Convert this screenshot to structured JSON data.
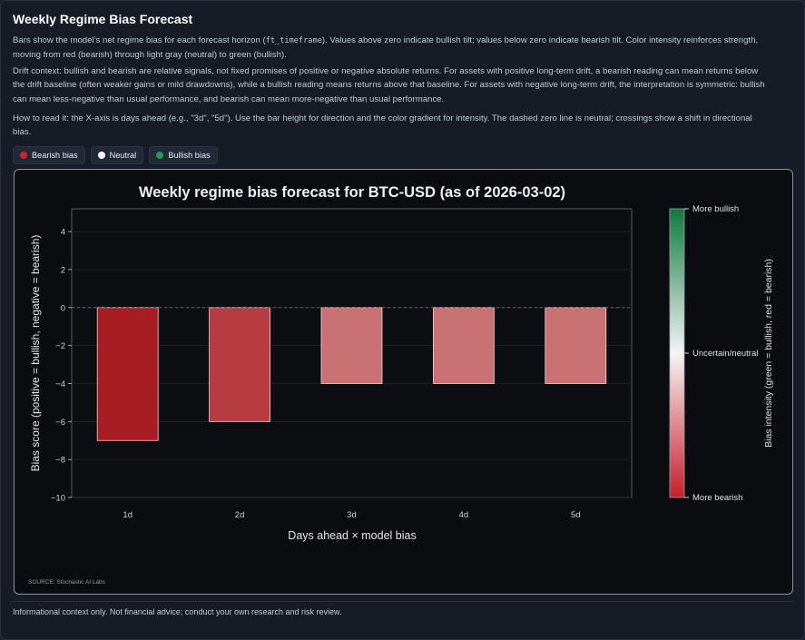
{
  "page": {
    "title": "Weekly Regime Bias Forecast",
    "intro_before_code": "Bars show the model’s net regime bias for each forecast horizon (",
    "intro_code": "ft_timeframe",
    "intro_after_code_line1": "). Values above zero indicate bullish tilt; values below zero indicate bearish tilt. Color intensity reinforces strength,",
    "intro_line2": "moving from red (bearish) through light gray (neutral) to green (bullish).",
    "drift_line1": "Drift context: bullish and bearish are relative signals, not fixed promises of positive or negative absolute returns. For assets with positive long-term drift, a bearish reading can mean returns below",
    "drift_line2": "the drift baseline (often weaker gains or mild drawdowns), while a bullish reading means returns above that baseline. For assets with negative long-term drift, the interpretation is symmetric: bullish",
    "drift_line3": "can mean less-negative than usual performance, and bearish can mean more-negative than usual performance.",
    "howto_line1": "How to read it: the X-axis is days ahead (e.g., \"3d\", \"5d\"). Use the bar height for direction and the color gradient for intensity. The dashed zero line is neutral; crossings show a shift in directional",
    "howto_line2": "bias.",
    "footer": "Informational context only. Not financial advice; conduct your own research and risk review."
  },
  "legend": [
    {
      "label": "Bearish bias",
      "color": "#d2222e"
    },
    {
      "label": "Neutral",
      "color": "#ffffff"
    },
    {
      "label": "Bullish bias",
      "color": "#1f9d55"
    }
  ],
  "chart_data": {
    "type": "bar",
    "title": "Weekly regime bias forecast for BTC-USD (as of 2026-03-02)",
    "xlabel": "Days ahead × model bias",
    "ylabel": "Bias score (positive = bullish, negative = bearish)",
    "categories": [
      "1d",
      "2d",
      "3d",
      "4d",
      "5d"
    ],
    "values": [
      -7,
      -6,
      -4,
      -4,
      -4
    ],
    "ylim": [
      -10,
      5.2
    ],
    "yticks": [
      -10,
      -8,
      -6,
      -4,
      -2,
      0,
      2,
      4
    ],
    "zero_line": "dashed",
    "grid": true,
    "colorbar": {
      "label": "Bias intensity (green = bullish, red = bearish)",
      "top_label": "More bullish",
      "mid_label": "Uncertain/neutral",
      "bottom_label": "More bearish",
      "top_color": "#0e7a3c",
      "mid_color": "#f4f4f4",
      "bottom_color": "#c81e2a"
    },
    "bar_colors": [
      "#a81d24",
      "#b73c41",
      "#c97173",
      "#c97173",
      "#c97173"
    ],
    "source": "SOURCE: Stochastic AI Labs"
  }
}
